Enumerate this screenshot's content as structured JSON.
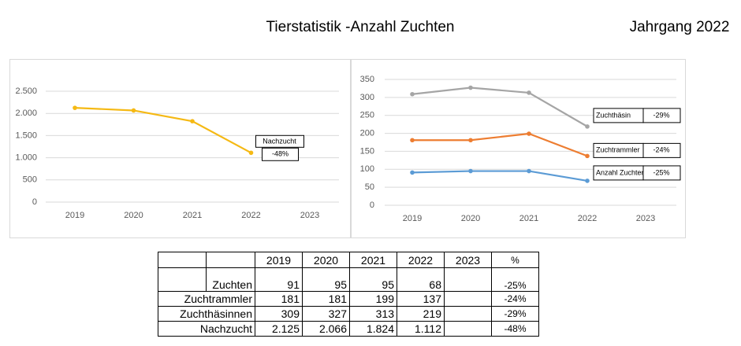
{
  "header": {
    "title": "Tierstatistik -Anzahl Zuchten",
    "year_label": "Jahrgang 2022"
  },
  "chart_data": [
    {
      "type": "line",
      "categories": [
        "2019",
        "2020",
        "2021",
        "2022",
        "2023"
      ],
      "series": [
        {
          "name": "Nachzucht",
          "color": "#f5b914",
          "values": [
            2125,
            2066,
            1824,
            1112,
            null
          ],
          "change": "-48%"
        }
      ],
      "ylim": [
        0,
        2500
      ],
      "yticks": [
        0,
        500,
        {
          "value": 1000,
          "label": "1.000"
        },
        {
          "value": 1500,
          "label": "1.500"
        },
        {
          "value": 2000,
          "label": "2.000"
        },
        {
          "value": 2500,
          "label": "2.500"
        }
      ],
      "grid": true
    },
    {
      "type": "line",
      "categories": [
        "2019",
        "2020",
        "2021",
        "2022",
        "2023"
      ],
      "series": [
        {
          "name": "Zuchthäsin",
          "color": "#a5a5a5",
          "values": [
            309,
            327,
            313,
            219,
            null
          ],
          "change": "-29%"
        },
        {
          "name": "Zuchtrammler",
          "color": "#ed7d31",
          "values": [
            181,
            181,
            199,
            137,
            null
          ],
          "change": "-24%"
        },
        {
          "name": "Anzahl Zuchten",
          "color": "#5b9bd5",
          "values": [
            91,
            95,
            95,
            68,
            null
          ],
          "change": "-25%"
        }
      ],
      "ylim": [
        0,
        350
      ],
      "yticks": [
        0,
        50,
        100,
        150,
        200,
        250,
        300,
        350
      ],
      "grid": true
    }
  ],
  "table": {
    "columns": [
      "2019",
      "2020",
      "2021",
      "2022",
      "2023",
      "%"
    ],
    "rows": [
      {
        "label": "Zuchten",
        "values": [
          "91",
          "95",
          "95",
          "68"
        ],
        "change": "-25%"
      },
      {
        "label": "Zuchtrammler",
        "values": [
          "181",
          "181",
          "199",
          "137"
        ],
        "change": "-24%"
      },
      {
        "label": "Zuchthäsinnen",
        "values": [
          "309",
          "327",
          "313",
          "219"
        ],
        "change": "-29%"
      },
      {
        "label": "Nachzucht",
        "values": [
          "2.125",
          "2.066",
          "1.824",
          "1.112"
        ],
        "change": "-48%"
      }
    ]
  }
}
